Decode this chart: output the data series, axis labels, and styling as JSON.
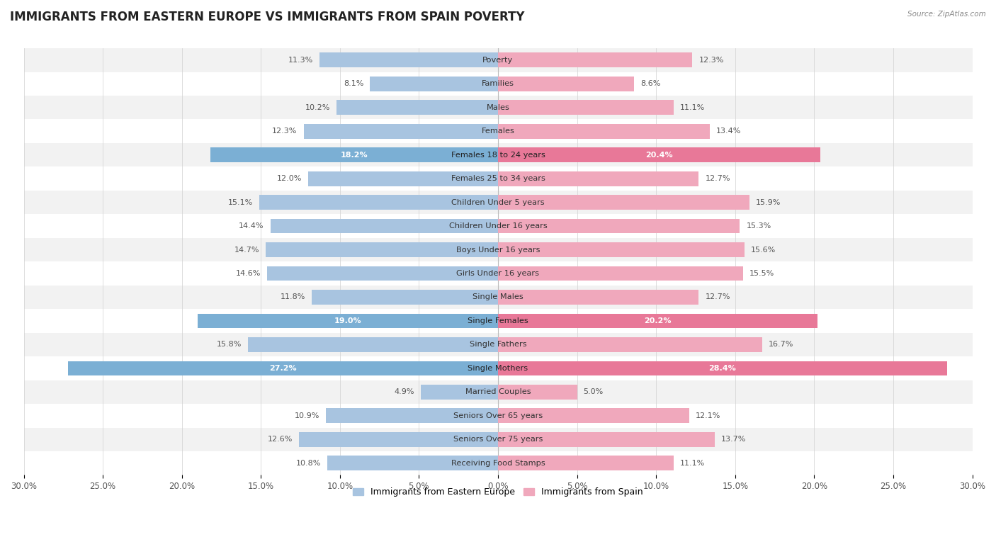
{
  "title": "IMMIGRANTS FROM EASTERN EUROPE VS IMMIGRANTS FROM SPAIN POVERTY",
  "source": "Source: ZipAtlas.com",
  "categories": [
    "Poverty",
    "Families",
    "Males",
    "Females",
    "Females 18 to 24 years",
    "Females 25 to 34 years",
    "Children Under 5 years",
    "Children Under 16 years",
    "Boys Under 16 years",
    "Girls Under 16 years",
    "Single Males",
    "Single Females",
    "Single Fathers",
    "Single Mothers",
    "Married Couples",
    "Seniors Over 65 years",
    "Seniors Over 75 years",
    "Receiving Food Stamps"
  ],
  "left_values": [
    11.3,
    8.1,
    10.2,
    12.3,
    18.2,
    12.0,
    15.1,
    14.4,
    14.7,
    14.6,
    11.8,
    19.0,
    15.8,
    27.2,
    4.9,
    10.9,
    12.6,
    10.8
  ],
  "right_values": [
    12.3,
    8.6,
    11.1,
    13.4,
    20.4,
    12.7,
    15.9,
    15.3,
    15.6,
    15.5,
    12.7,
    20.2,
    16.7,
    28.4,
    5.0,
    12.1,
    13.7,
    11.1
  ],
  "left_color": "#a8c4e0",
  "right_color": "#f0a8bc",
  "highlight_left_color": "#7bafd4",
  "highlight_right_color": "#e87898",
  "highlight_rows": [
    4,
    11,
    13
  ],
  "axis_max": 30.0,
  "left_label": "Immigrants from Eastern Europe",
  "right_label": "Immigrants from Spain",
  "bg_color": "#ffffff",
  "row_bg_even": "#f2f2f2",
  "row_bg_odd": "#ffffff",
  "bar_height": 0.62,
  "title_fontsize": 12,
  "label_fontsize": 8.2,
  "value_fontsize": 8.0,
  "axis_tick_fontsize": 8.5
}
